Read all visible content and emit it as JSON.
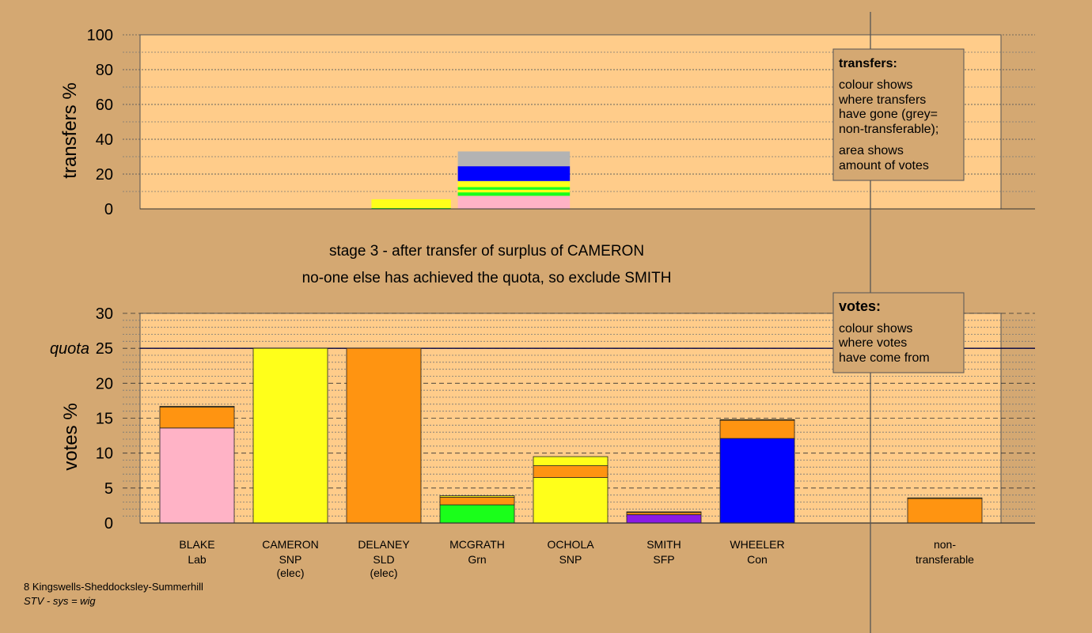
{
  "colors": {
    "background": "#d4a872",
    "plot_area": "#ffcc8a",
    "pink": "#ffb3c6",
    "yellow": "#ffff1a",
    "orange": "#ff9411",
    "green": "#1aff1a",
    "blue": "#0000ff",
    "purple": "#8a1ae6",
    "grey": "#b3b3b3"
  },
  "headings": {
    "line1": "stage 3 - after transfer of surplus of CAMERON",
    "line2": "no-one else has achieved the quota, so exclude SMITH"
  },
  "footer": {
    "line1": "8 Kingswells-Sheddocksley-Summerhill",
    "line2": "STV - sys = wig"
  },
  "legend_transfers": {
    "title": "transfers:",
    "lines": [
      "colour shows",
      "where transfers",
      "have gone (grey=",
      "non-transferable);"
    ],
    "lines2": [
      "area shows",
      "amount of votes"
    ]
  },
  "legend_votes": {
    "title": "votes:",
    "lines": [
      "colour shows",
      "where votes",
      "have come from"
    ]
  },
  "chart_data": [
    {
      "type": "bar",
      "stacked": true,
      "ylabel": "transfers %",
      "ylim": [
        0,
        100
      ],
      "yticks": [
        "0",
        "20",
        "40",
        "60",
        "80",
        "100"
      ],
      "bars": [
        {
          "slot": 2.2,
          "width": 0.85,
          "segments": [
            {
              "color": "green",
              "value": 0.5
            },
            {
              "color": "yellow",
              "value": 5
            }
          ]
        },
        {
          "slot": 3.3,
          "width": 1.2,
          "segments": [
            {
              "color": "pink",
              "value": 7.5
            },
            {
              "color": "green",
              "value": 2
            },
            {
              "color": "yellow",
              "value": 1.5
            },
            {
              "color": "green",
              "value": 1.5
            },
            {
              "color": "yellow",
              "value": 3.5
            },
            {
              "color": "blue",
              "value": 8.5
            },
            {
              "color": "grey",
              "value": 8.5
            }
          ]
        }
      ]
    },
    {
      "type": "bar",
      "stacked": true,
      "ylabel": "votes %",
      "ylim": [
        0,
        30
      ],
      "yticks": [
        "0",
        "5",
        "10",
        "15",
        "20",
        "25",
        "30"
      ],
      "quota": {
        "label": "quota",
        "value": 25
      },
      "categories": [
        {
          "name": "BLAKE",
          "party": "Lab",
          "note": "",
          "segments": [
            {
              "color": "pink",
              "value": 13.6
            },
            {
              "color": "orange",
              "value": 3.0
            },
            {
              "color": "yellow",
              "value": 0.1
            }
          ]
        },
        {
          "name": "CAMERON",
          "party": "SNP",
          "note": "(elec)",
          "segments": [
            {
              "color": "yellow",
              "value": 25.0
            }
          ]
        },
        {
          "name": "DELANEY",
          "party": "SLD",
          "note": "(elec)",
          "segments": [
            {
              "color": "orange",
              "value": 25.0
            }
          ]
        },
        {
          "name": "MCGRATH",
          "party": "Grn",
          "note": "",
          "segments": [
            {
              "color": "green",
              "value": 2.6
            },
            {
              "color": "orange",
              "value": 1.1
            },
            {
              "color": "yellow",
              "value": 0.2
            }
          ]
        },
        {
          "name": "OCHOLA",
          "party": "SNP",
          "note": "",
          "segments": [
            {
              "color": "yellow",
              "value": 6.5
            },
            {
              "color": "orange",
              "value": 1.7
            },
            {
              "color": "yellow",
              "value": 1.3
            }
          ]
        },
        {
          "name": "SMITH",
          "party": "SFP",
          "note": "",
          "segments": [
            {
              "color": "purple",
              "value": 1.2
            },
            {
              "color": "orange",
              "value": 0.3
            },
            {
              "color": "yellow",
              "value": 0.1
            }
          ]
        },
        {
          "name": "WHEELER",
          "party": "Con",
          "note": "",
          "segments": [
            {
              "color": "blue",
              "value": 12.1
            },
            {
              "color": "orange",
              "value": 2.6
            },
            {
              "color": "yellow",
              "value": 0.1
            }
          ]
        }
      ],
      "nontransferable": {
        "line1": "non-",
        "line2": "transferable",
        "segments": [
          {
            "color": "orange",
            "value": 3.5
          },
          {
            "color": "yellow",
            "value": 0.1
          }
        ]
      }
    }
  ]
}
